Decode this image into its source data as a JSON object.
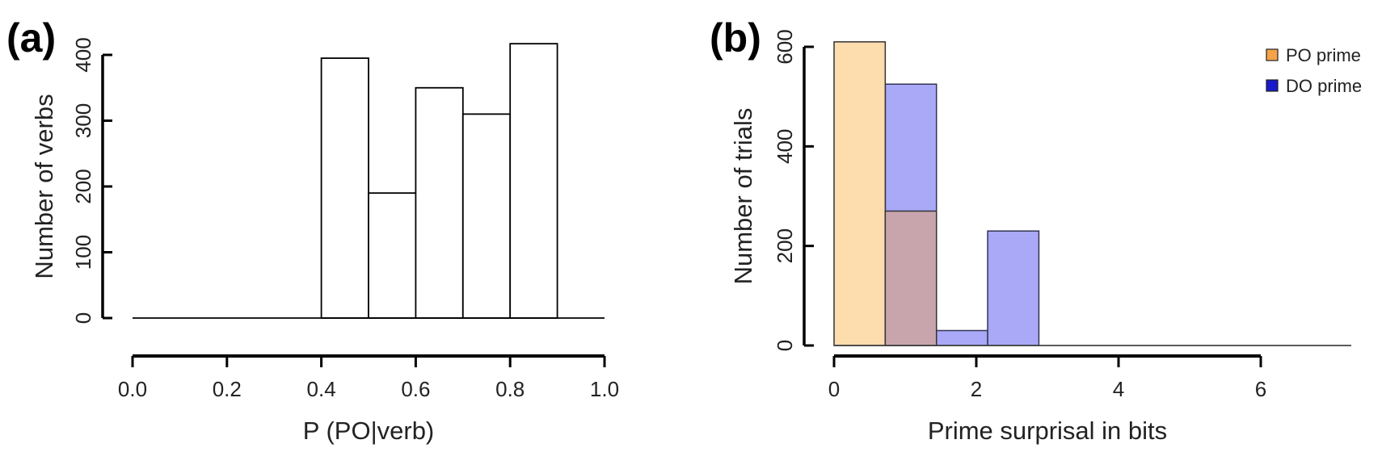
{
  "chart_data": [
    {
      "panel_label": "(a)",
      "type": "bar",
      "subtype": "histogram",
      "xlabel": "P (PO|verb)",
      "ylabel": "Number of verbs",
      "xlim": [
        0.0,
        1.0
      ],
      "ylim": [
        0,
        400
      ],
      "xticks": [
        "0.0",
        "0.2",
        "0.4",
        "0.6",
        "0.8",
        "1.0"
      ],
      "yticks": [
        "0",
        "100",
        "200",
        "300",
        "400"
      ],
      "bins": [
        {
          "x0": 0.0,
          "x1": 0.1,
          "value": 0
        },
        {
          "x0": 0.1,
          "x1": 0.2,
          "value": 0
        },
        {
          "x0": 0.2,
          "x1": 0.3,
          "value": 0
        },
        {
          "x0": 0.3,
          "x1": 0.4,
          "value": 0
        },
        {
          "x0": 0.4,
          "x1": 0.5,
          "value": 395
        },
        {
          "x0": 0.5,
          "x1": 0.6,
          "value": 190
        },
        {
          "x0": 0.6,
          "x1": 0.7,
          "value": 350
        },
        {
          "x0": 0.7,
          "x1": 0.8,
          "value": 310
        },
        {
          "x0": 0.8,
          "x1": 0.9,
          "value": 417
        },
        {
          "x0": 0.9,
          "x1": 1.0,
          "value": 0
        }
      ],
      "bar_fill": "#ffffff",
      "bar_stroke": "#000000",
      "grid": false
    },
    {
      "panel_label": "(b)",
      "type": "bar",
      "subtype": "overlaid histogram",
      "xlabel": "Prime surprisal in bits",
      "ylabel": "Number of trials",
      "xlim": [
        0,
        6
      ],
      "ylim": [
        0,
        600
      ],
      "xticks": [
        "0",
        "2",
        "4",
        "6"
      ],
      "yticks": [
        "0",
        "200",
        "400",
        "600"
      ],
      "bin_width": 0.72,
      "legend_position": "top-right",
      "series": [
        {
          "name": "PO prime",
          "color": "#f5a34a",
          "fill": "#fddcae",
          "bins": [
            {
              "x0": 0,
              "value": 610
            },
            {
              "x0": 0.72,
              "value": 270
            }
          ]
        },
        {
          "name": "DO prime",
          "color": "#1a1acc",
          "fill": "#a9a9f7",
          "bins": [
            {
              "x0": 0.72,
              "value": 525
            },
            {
              "x0": 1.44,
              "value": 30
            },
            {
              "x0": 2.16,
              "value": 230
            }
          ]
        }
      ],
      "overlap_fill": "#c8a5ad",
      "grid": false
    }
  ]
}
